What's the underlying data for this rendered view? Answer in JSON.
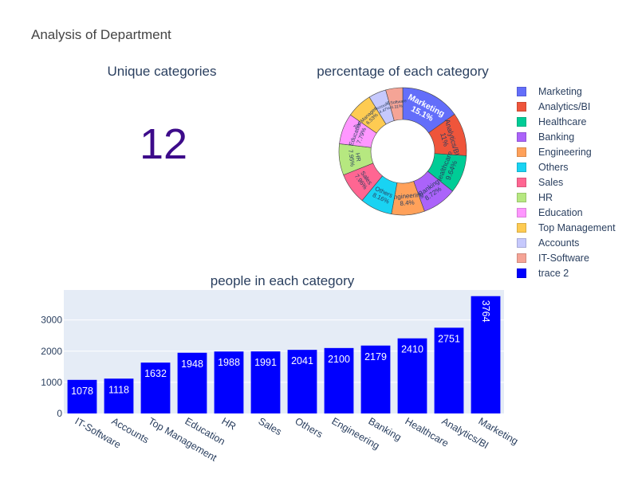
{
  "title": "Analysis of Department",
  "indicator": {
    "title": "Unique categories",
    "value": "12"
  },
  "pie": {
    "title": "percentage of each category"
  },
  "bar": {
    "title": "people in each category"
  },
  "chart_data": [
    {
      "type": "pie",
      "hole": 0.5,
      "title": "percentage of each category",
      "slices": [
        {
          "label": "Marketing",
          "value": 15.1,
          "text": "15.1%",
          "color": "#636efa"
        },
        {
          "label": "Analytics/BI",
          "value": 11.0,
          "text": "11%",
          "color": "#ef553b"
        },
        {
          "label": "Healthcare",
          "value": 9.64,
          "text": "9.64%",
          "color": "#00cc96"
        },
        {
          "label": "Banking",
          "value": 8.72,
          "text": "8.72%",
          "color": "#ab63fa"
        },
        {
          "label": "Engineering",
          "value": 8.4,
          "text": "8.4%",
          "color": "#ffa15a"
        },
        {
          "label": "Others",
          "value": 8.16,
          "text": "8.16%",
          "color": "#19d3f3"
        },
        {
          "label": "Sales",
          "value": 7.96,
          "text": "7.96%",
          "color": "#ff6692"
        },
        {
          "label": "HR",
          "value": 7.95,
          "text": "7.95%",
          "color": "#b6e880"
        },
        {
          "label": "Education",
          "value": 7.79,
          "text": "7.79%",
          "color": "#ff97ff"
        },
        {
          "label": "Top Management",
          "value": 6.53,
          "text": "6.53%",
          "color": "#fecb52"
        },
        {
          "label": "Accounts",
          "value": 4.47,
          "text": "4.47%",
          "color": "#c6c9fd"
        },
        {
          "label": "IT-Software",
          "value": 4.31,
          "text": "4.31%",
          "color": "#f5a496"
        }
      ]
    },
    {
      "type": "bar",
      "title": "people in each category",
      "series_name": "trace 2",
      "color": "#0000ff",
      "categories": [
        "IT-Software",
        "Accounts",
        "Top Management",
        "Education",
        "HR",
        "Sales",
        "Others",
        "Engineering",
        "Banking",
        "Healthcare",
        "Analytics/BI",
        "Marketing"
      ],
      "values": [
        1078,
        1118,
        1632,
        1948,
        1988,
        1991,
        2041,
        2100,
        2179,
        2410,
        2751,
        3764
      ],
      "yticks": [
        0,
        1000,
        2000,
        3000
      ],
      "ylim": [
        0,
        3962
      ],
      "grid": true
    }
  ],
  "legend": [
    {
      "label": "Marketing",
      "color": "#636efa"
    },
    {
      "label": "Analytics/BI",
      "color": "#ef553b"
    },
    {
      "label": "Healthcare",
      "color": "#00cc96"
    },
    {
      "label": "Banking",
      "color": "#ab63fa"
    },
    {
      "label": "Engineering",
      "color": "#ffa15a"
    },
    {
      "label": "Others",
      "color": "#19d3f3"
    },
    {
      "label": "Sales",
      "color": "#ff6692"
    },
    {
      "label": "HR",
      "color": "#b6e880"
    },
    {
      "label": "Education",
      "color": "#ff97ff"
    },
    {
      "label": "Top Management",
      "color": "#fecb52"
    },
    {
      "label": "Accounts",
      "color": "#c6c9fd"
    },
    {
      "label": "IT-Software",
      "color": "#f5a496"
    },
    {
      "label": "trace 2",
      "color": "#0000ff"
    }
  ]
}
